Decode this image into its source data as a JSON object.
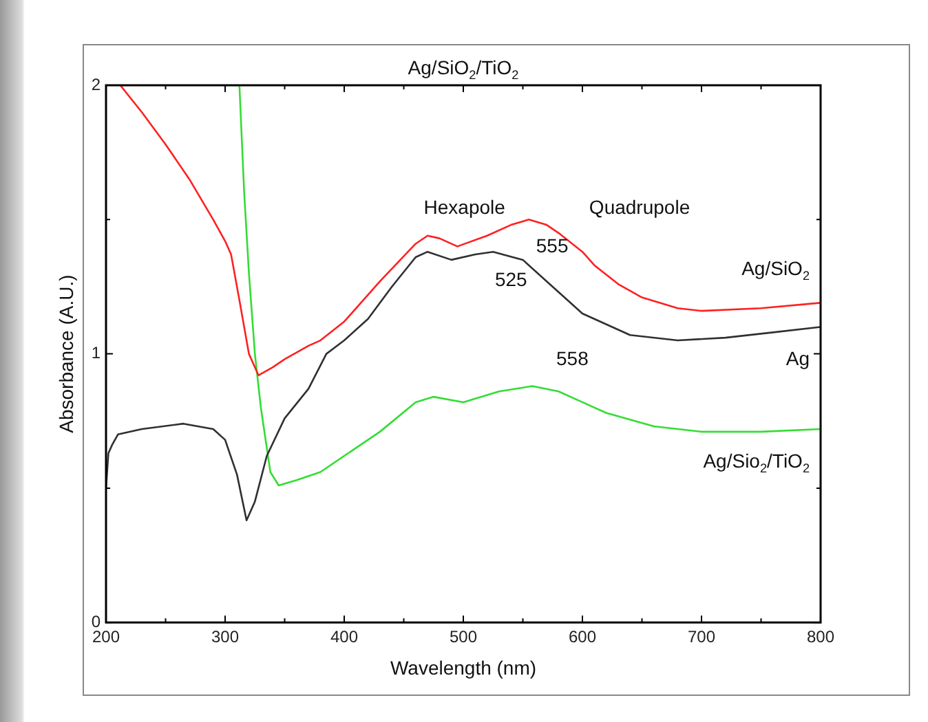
{
  "chart_data": {
    "type": "line",
    "title": "Ag/SiO$_{2}$/TiO$_{2}$",
    "xlabel": "Wavelength (nm)",
    "ylabel": "Absorbance (A.U.)",
    "xlim": [
      200,
      800
    ],
    "ylim": [
      0,
      2
    ],
    "xticks": [
      200,
      {
        "value": 250,
        "label": null
      },
      300,
      {
        "value": 350,
        "label": null
      },
      400,
      {
        "value": 450,
        "label": null
      },
      500,
      {
        "value": 550,
        "label": null
      },
      600,
      {
        "value": 650,
        "label": null
      },
      700,
      {
        "value": 750,
        "label": null
      },
      800
    ],
    "yticks": [
      0,
      {
        "value": 0.5,
        "label": null
      },
      1,
      {
        "value": 1.5,
        "label": null
      },
      2
    ],
    "grid": false,
    "legend": false,
    "marker": "none",
    "line_style": "solid",
    "series": [
      {
        "name": "Ag/SiO$_{2}$",
        "color": "#ff2020",
        "x": [
          212,
          230,
          250,
          270,
          290,
          300,
          305,
          312,
          320,
          328,
          340,
          350,
          370,
          380,
          400,
          430,
          460,
          470,
          480,
          495,
          520,
          540,
          555,
          570,
          580,
          600,
          610,
          630,
          650,
          680,
          700,
          750,
          800
        ],
        "values": [
          2.0,
          1.9,
          1.78,
          1.65,
          1.5,
          1.42,
          1.37,
          1.2,
          1.0,
          0.92,
          0.95,
          0.98,
          1.03,
          1.05,
          1.12,
          1.27,
          1.41,
          1.44,
          1.43,
          1.4,
          1.44,
          1.48,
          1.5,
          1.48,
          1.45,
          1.38,
          1.33,
          1.26,
          1.21,
          1.17,
          1.16,
          1.17,
          1.19
        ]
      },
      {
        "name": "Ag",
        "color": "#303030",
        "x": [
          200,
          202,
          205,
          210,
          230,
          265,
          290,
          300,
          310,
          318,
          325,
          335,
          350,
          370,
          385,
          400,
          420,
          440,
          460,
          470,
          490,
          510,
          525,
          550,
          575,
          600,
          640,
          680,
          720,
          760,
          800
        ],
        "values": [
          0.5,
          0.63,
          0.66,
          0.7,
          0.72,
          0.74,
          0.72,
          0.68,
          0.55,
          0.38,
          0.45,
          0.62,
          0.76,
          0.87,
          1.0,
          1.05,
          1.13,
          1.25,
          1.36,
          1.38,
          1.35,
          1.37,
          1.38,
          1.35,
          1.25,
          1.15,
          1.07,
          1.05,
          1.06,
          1.08,
          1.1
        ]
      },
      {
        "name": "Ag/Sio$_{2}$/TiO$_{2}$",
        "color": "#33dd33",
        "x": [
          312,
          316,
          320,
          325,
          330,
          338,
          345,
          360,
          380,
          400,
          430,
          460,
          475,
          500,
          530,
          558,
          580,
          600,
          620,
          660,
          700,
          750,
          800
        ],
        "values": [
          2.0,
          1.6,
          1.3,
          1.0,
          0.8,
          0.56,
          0.51,
          0.53,
          0.56,
          0.62,
          0.71,
          0.82,
          0.84,
          0.82,
          0.86,
          0.88,
          0.86,
          0.82,
          0.78,
          0.73,
          0.71,
          0.71,
          0.72
        ]
      }
    ],
    "annotations": [
      "Hexapole",
      "Quadrupole",
      {
        "text": "555",
        "x": 555,
        "y": 1.5
      },
      {
        "text": "525",
        "x": 525,
        "y": 1.38
      },
      {
        "text": "558",
        "x": 558,
        "y": 0.88
      }
    ]
  }
}
